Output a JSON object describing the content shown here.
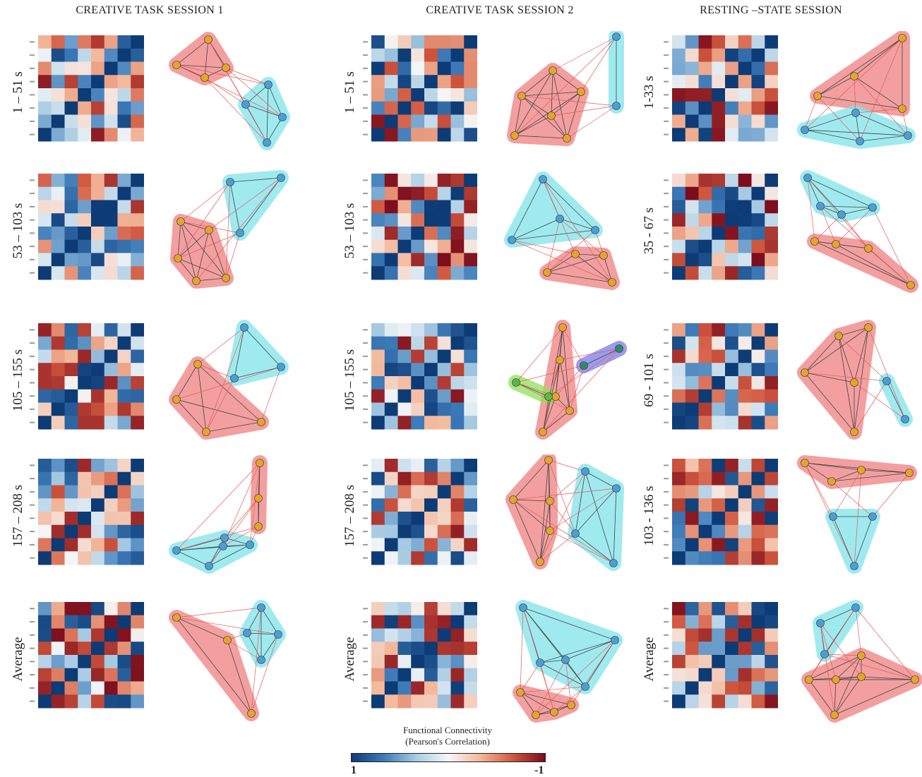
{
  "columns": [
    {
      "title": "CREATIVE TASK  SESSION 1",
      "rows": [
        {
          "label": "1 – 51 s",
          "matrix_seed": 11,
          "network": "c1r1"
        },
        {
          "label": "53 – 103 s",
          "matrix_seed": 12,
          "network": "c1r2"
        },
        {
          "label": "105 – 155 s",
          "matrix_seed": 13,
          "network": "c1r3"
        },
        {
          "label": "157 – 208 s",
          "matrix_seed": 14,
          "network": "c1r4"
        },
        {
          "label": "Average",
          "matrix_seed": 15,
          "network": "c1r5"
        }
      ]
    },
    {
      "title": "CREATIVE TASK  SESSION 2",
      "rows": [
        {
          "label": "1 – 51 s",
          "matrix_seed": 21,
          "network": "c2r1"
        },
        {
          "label": "53 – 103 s",
          "matrix_seed": 22,
          "network": "c2r2"
        },
        {
          "label": "105 – 155 s",
          "matrix_seed": 23,
          "network": "c2r3"
        },
        {
          "label": "157 – 208 s",
          "matrix_seed": 24,
          "network": "c2r4"
        },
        {
          "label": "Average",
          "matrix_seed": 25,
          "network": "c2r5"
        }
      ]
    },
    {
      "title": "RESTING –STATE SESSION",
      "rows": [
        {
          "label": "1-33 s",
          "matrix_seed": 31,
          "network": "c3r1"
        },
        {
          "label": "35 - 67 s",
          "matrix_seed": 32,
          "network": "c3r2"
        },
        {
          "label": "69 - 101 s",
          "matrix_seed": 33,
          "network": "c3r3"
        },
        {
          "label": "103 - 136 s",
          "matrix_seed": 34,
          "network": "c3r4"
        },
        {
          "label": "Average",
          "matrix_seed": 35,
          "network": "c3r5"
        }
      ]
    }
  ],
  "colorbar": {
    "title_line1": "Functional Connectivity",
    "title_line2": "(Pearson's Correlation)",
    "min_label": "1",
    "max_label": "-1",
    "colors": [
      "#0d3b75",
      "#3d7ab8",
      "#a9cce3",
      "#f4f6f8",
      "#f3b79a",
      "#d0573f",
      "#7a0c1c"
    ]
  },
  "module_colors": {
    "red": "#f08080",
    "cyan": "#7fe3ea",
    "green": "#8fe05a",
    "blue": "#7c7ce8"
  },
  "node_colors": {
    "red_module": "#e6a52a",
    "cyan_module": "#4a9fd8",
    "green_module": "#5ab84a",
    "blue_module": "#2f8a6a"
  }
}
